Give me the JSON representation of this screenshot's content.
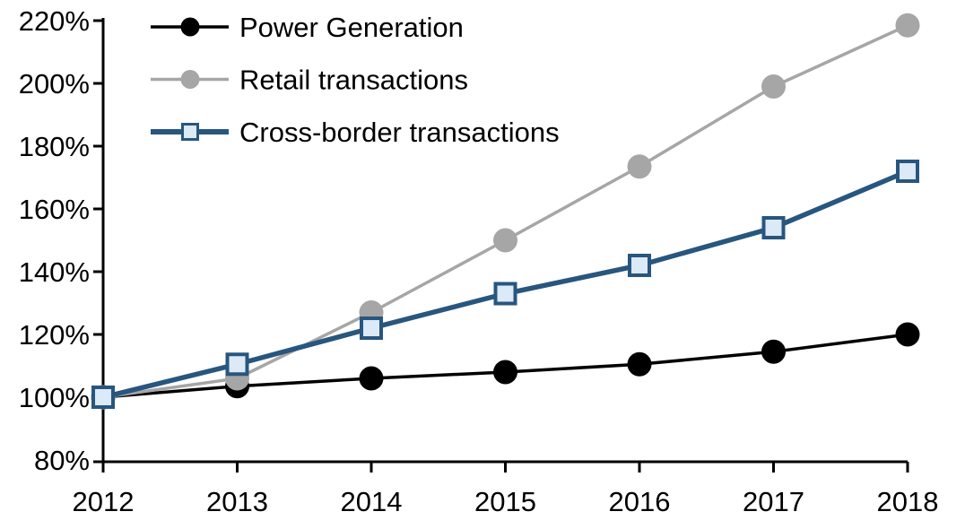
{
  "chart_data": {
    "type": "line",
    "title": "",
    "xlabel": "",
    "ylabel": "",
    "x": [
      "2012",
      "2013",
      "2014",
      "2015",
      "2016",
      "2017",
      "2018"
    ],
    "y_axis": {
      "min": 80,
      "max": 220,
      "step": 20,
      "unit": "%",
      "tick_labels": [
        "80%",
        "100%",
        "120%",
        "140%",
        "160%",
        "180%",
        "200%",
        "220%"
      ]
    },
    "grid": false,
    "legend_position": "top-left",
    "series": [
      {
        "name": "Power Generation",
        "color": "#000000",
        "marker": "circle",
        "marker_fill": "#000000",
        "values": [
          100,
          103.5,
          106,
          108,
          110.5,
          114.5,
          120
        ]
      },
      {
        "name": "Retail transactions",
        "color": "#A6A6A6",
        "marker": "circle",
        "marker_fill": "#A6A6A6",
        "values": [
          100,
          106,
          127,
          150,
          173.5,
          199,
          218.5
        ]
      },
      {
        "name": "Cross-border transactions",
        "color": "#27567F",
        "marker": "square",
        "marker_fill": "#DCE9F6",
        "values": [
          100,
          110.5,
          122,
          133,
          142,
          154,
          172
        ]
      }
    ]
  }
}
